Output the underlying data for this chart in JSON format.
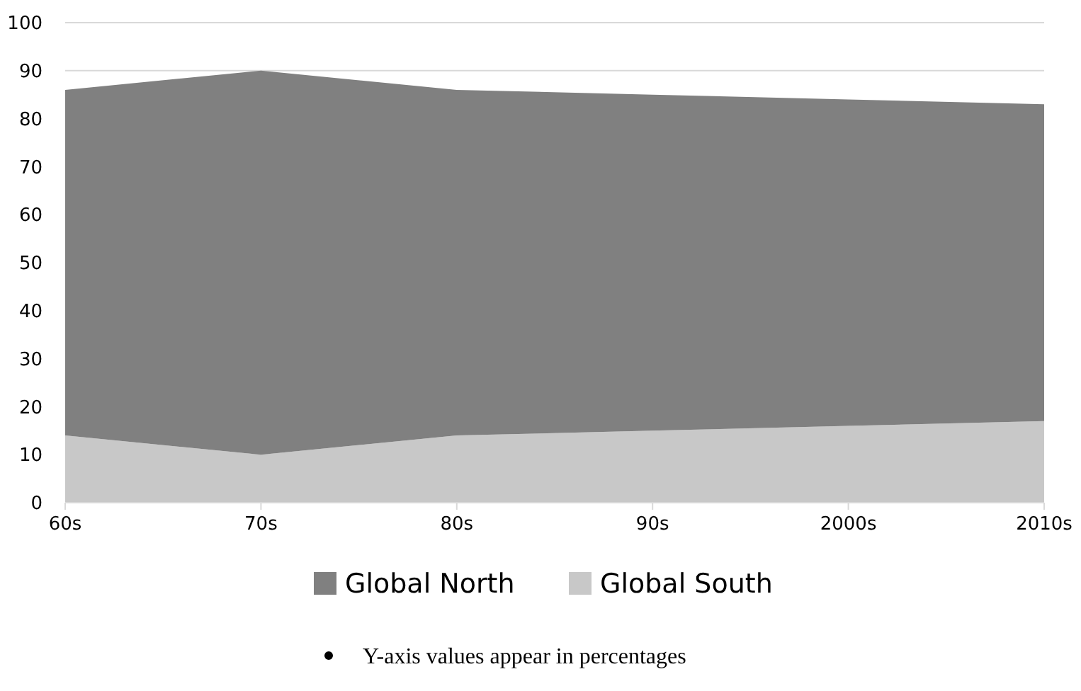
{
  "chart_data": {
    "type": "area",
    "stacked": true,
    "categories": [
      "60s",
      "70s",
      "80s",
      "90s",
      "2000s",
      "2010s"
    ],
    "series": [
      {
        "name": "Global South",
        "color": "#c8c8c8",
        "values": [
          14,
          10,
          14,
          15,
          16,
          17
        ]
      },
      {
        "name": "Global North",
        "color": "#808080",
        "values": [
          72,
          80,
          72,
          70,
          68,
          66
        ]
      }
    ],
    "ylim": [
      0,
      100
    ],
    "yticks": [
      0,
      10,
      20,
      30,
      40,
      50,
      60,
      70,
      80,
      90,
      100
    ],
    "grid": "y",
    "legend": "bottom",
    "annotations": [
      "Y-axis values appear in percentages"
    ]
  }
}
